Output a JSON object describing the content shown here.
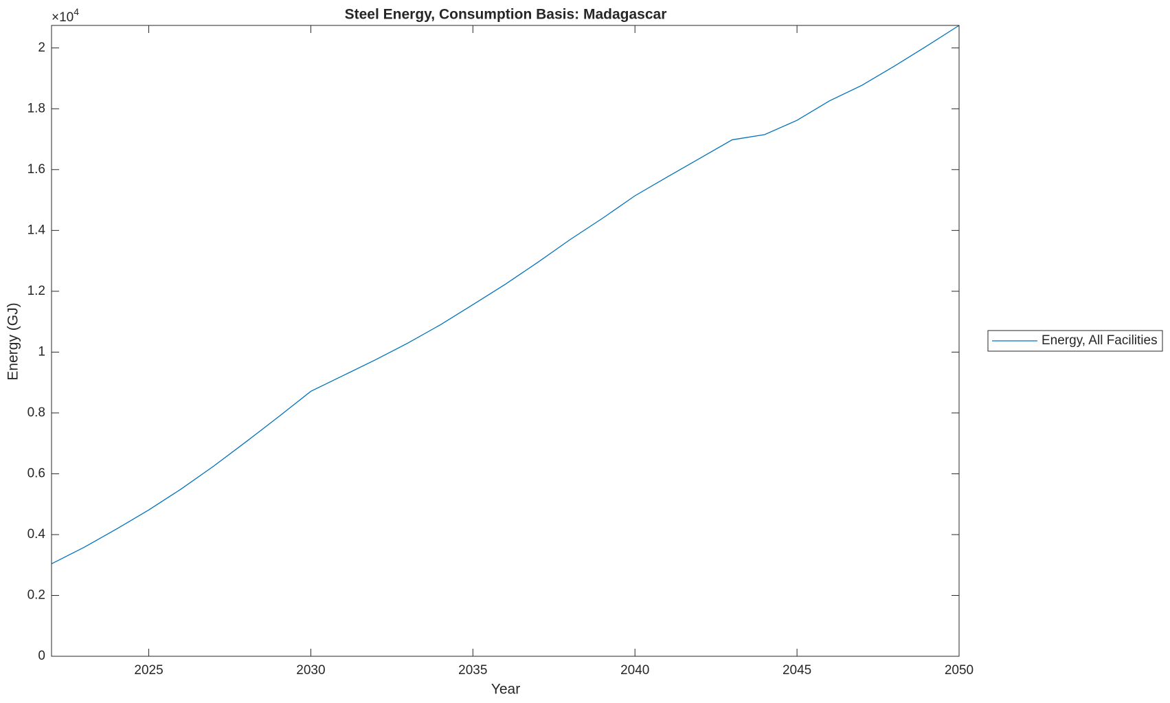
{
  "chart_data": {
    "type": "line",
    "title": "Steel Energy, Consumption Basis: Madagascar",
    "xlabel": "Year",
    "ylabel": "Energy (GJ)",
    "y_multiplier": {
      "base": "×10",
      "exponent": "4"
    },
    "x": [
      2022,
      2023,
      2024,
      2025,
      2026,
      2027,
      2028,
      2029,
      2030,
      2031,
      2032,
      2033,
      2034,
      2035,
      2036,
      2037,
      2038,
      2039,
      2040,
      2041,
      2042,
      2043,
      2044,
      2045,
      2046,
      2047,
      2048,
      2049,
      2050
    ],
    "series": [
      {
        "name": "Energy, All Facilities",
        "color": "#0072bd",
        "values": [
          3040,
          3580,
          4180,
          4810,
          5500,
          6250,
          7050,
          7870,
          8710,
          9230,
          9750,
          10300,
          10900,
          11560,
          12230,
          12950,
          13700,
          14400,
          15140,
          15760,
          16370,
          16980,
          17150,
          17620,
          18260,
          18770,
          19400,
          20060,
          20740
        ]
      }
    ],
    "xlim": [
      2022,
      2050
    ],
    "xticks": [
      2025,
      2030,
      2035,
      2040,
      2045,
      2050
    ],
    "ylim": [
      0,
      20740
    ],
    "yticks": [
      0,
      {
        "value": 2000,
        "label": "0.2"
      },
      {
        "value": 4000,
        "label": "0.4"
      },
      {
        "value": 6000,
        "label": "0.6"
      },
      {
        "value": 8000,
        "label": "0.8"
      },
      {
        "value": 10000,
        "label": "1"
      },
      {
        "value": 12000,
        "label": "1.2"
      },
      {
        "value": 14000,
        "label": "1.4"
      },
      {
        "value": 16000,
        "label": "1.6"
      },
      {
        "value": 18000,
        "label": "1.8"
      },
      {
        "value": 20000,
        "label": "2"
      }
    ],
    "grid": false,
    "legend": "east-outside"
  }
}
